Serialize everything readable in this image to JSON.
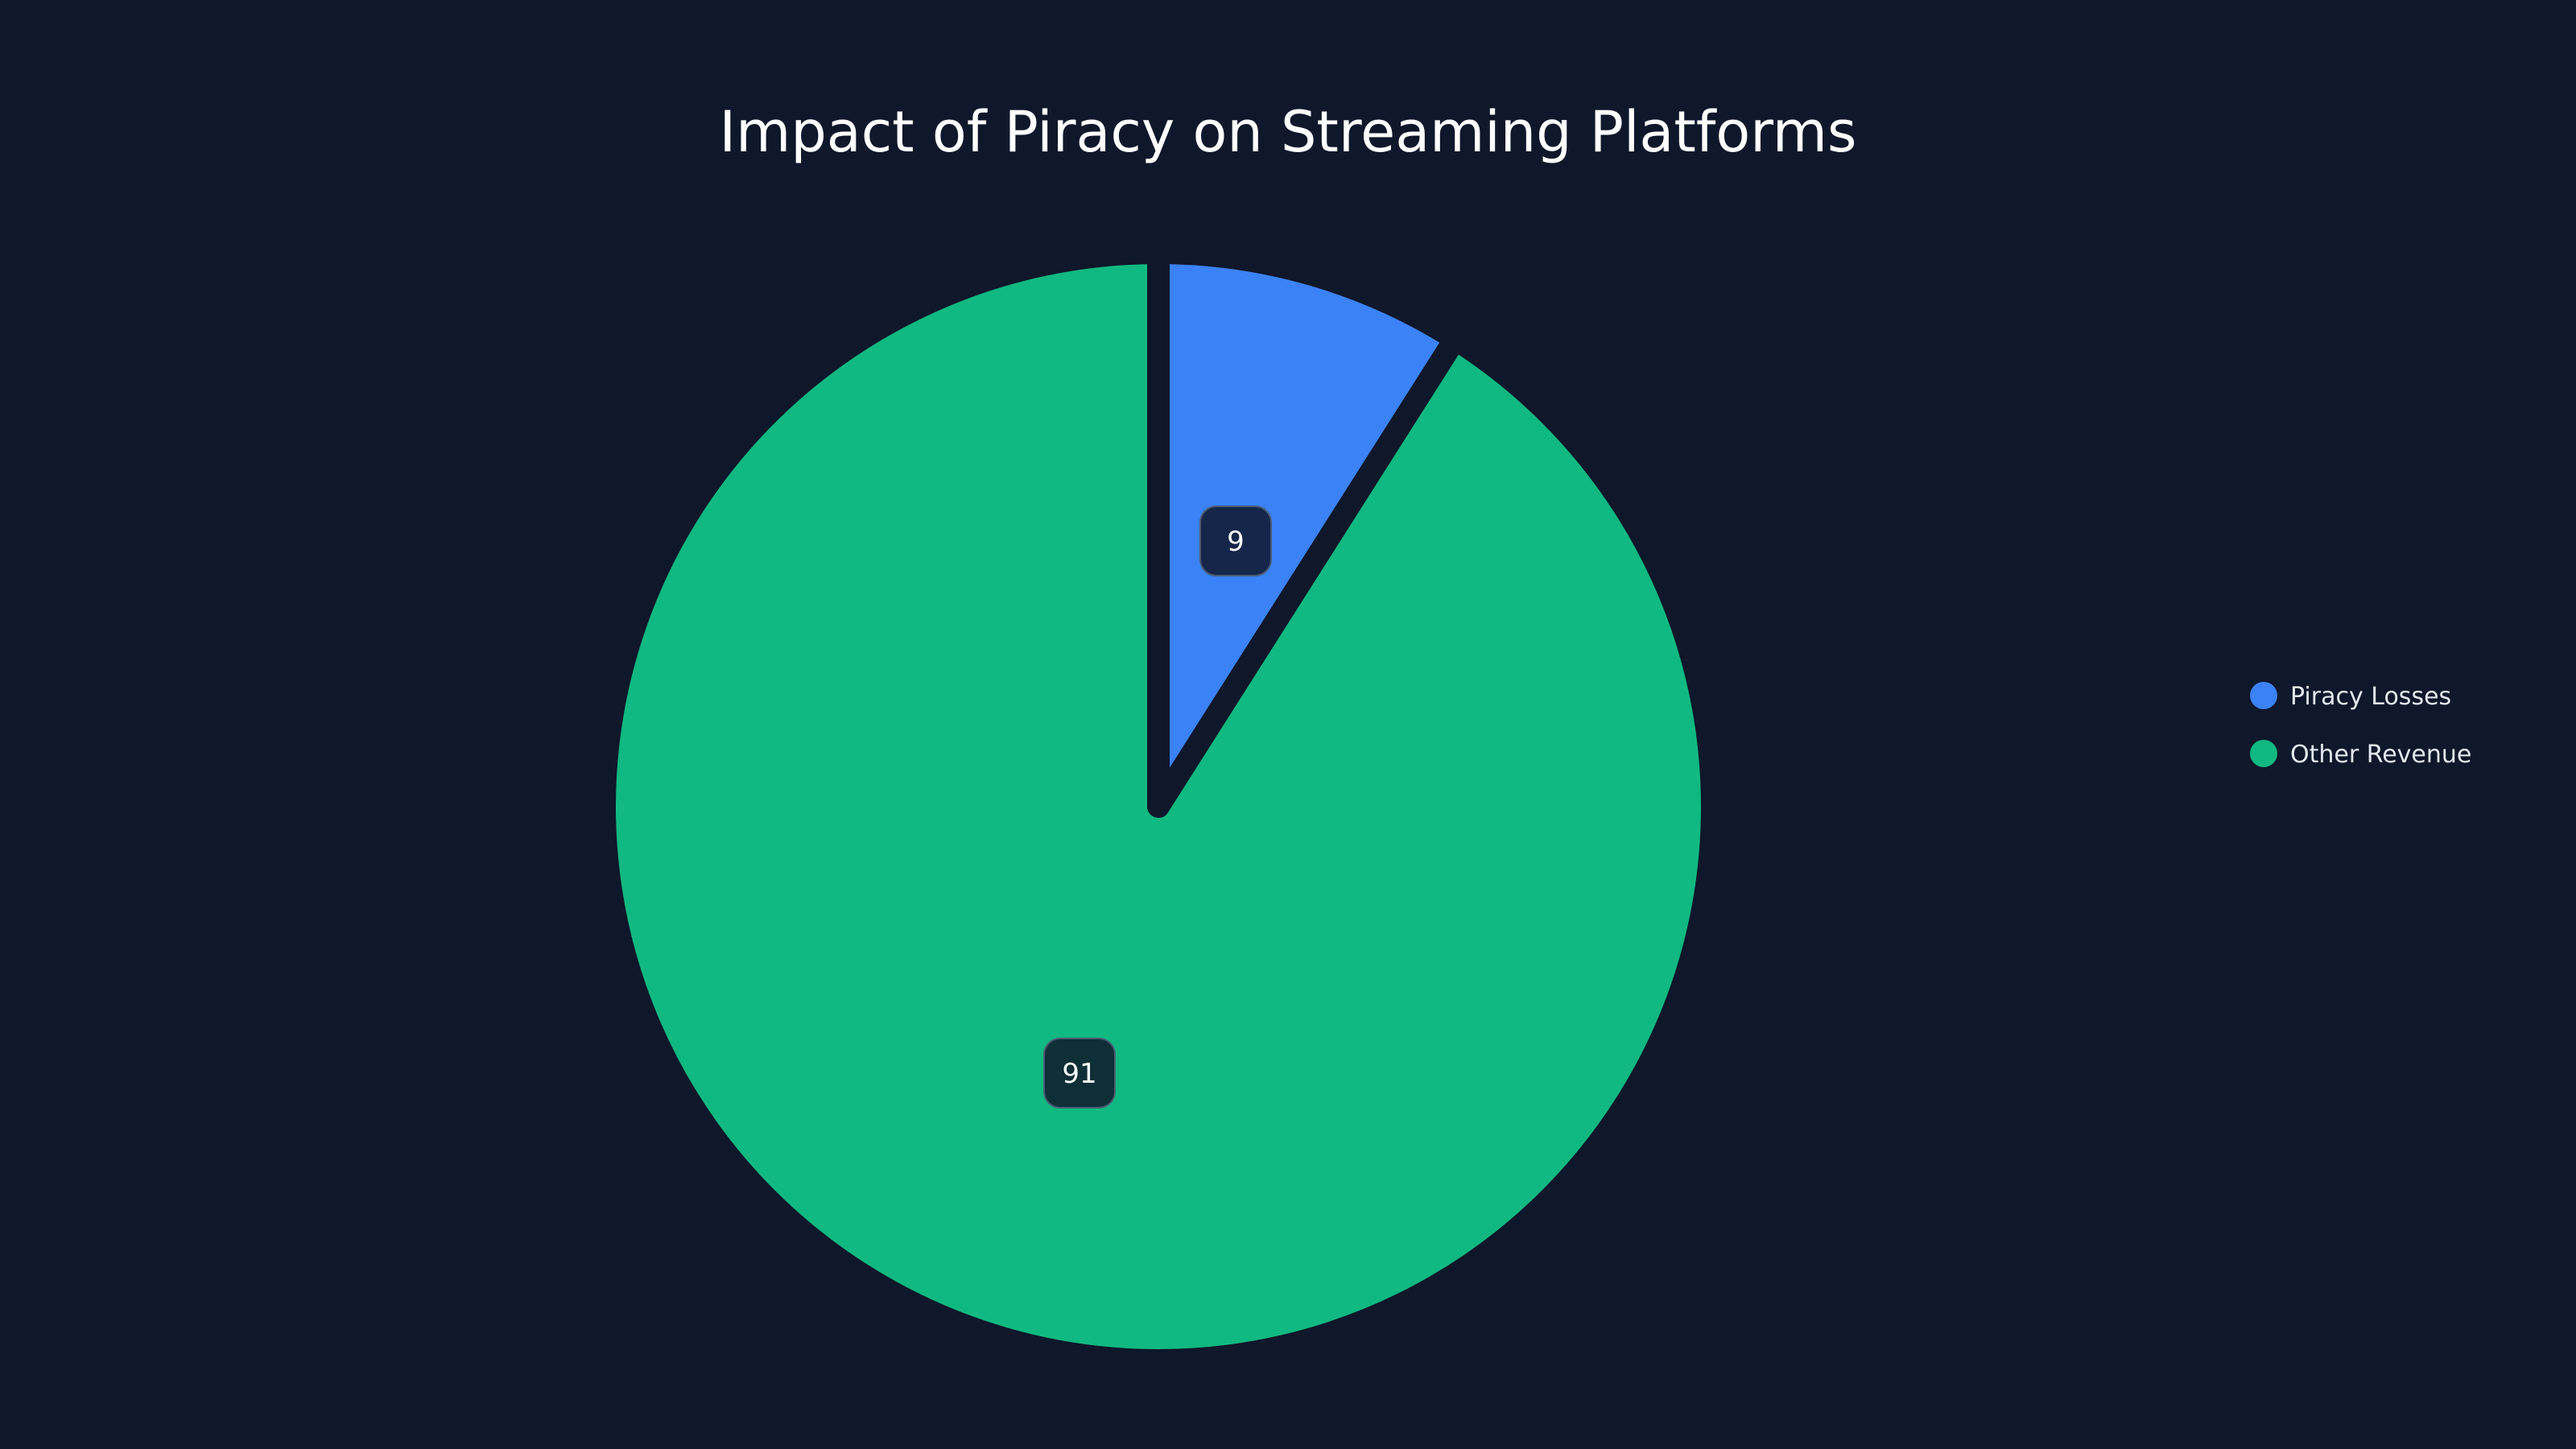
{
  "chart_data": {
    "type": "pie",
    "title": "Impact of Piracy on Streaming Platforms",
    "categories": [
      "Piracy Losses",
      "Other Revenue"
    ],
    "values": [
      9,
      91
    ],
    "colors": [
      "#3b82f6",
      "#10b981"
    ],
    "label_backgrounds": [
      "#15264a",
      "#0e2f36"
    ],
    "start_angle": "top, clockwise",
    "legend_position": "right",
    "background": "#0f172a"
  }
}
